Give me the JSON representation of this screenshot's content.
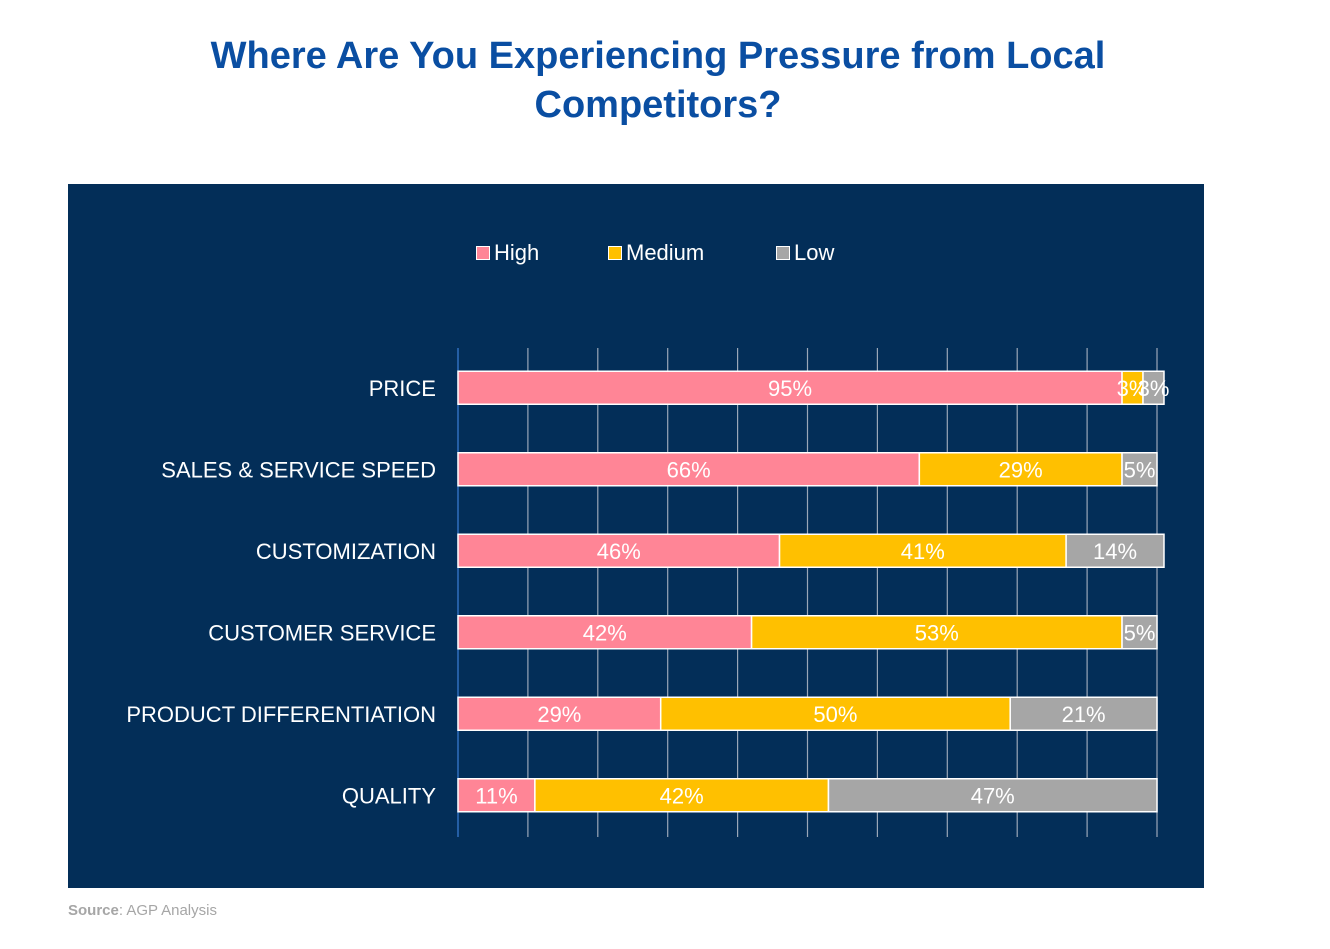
{
  "chart_data": {
    "type": "bar",
    "orientation": "horizontal",
    "stacked": true,
    "title": "Where Are You Experiencing Pressure from Local Competitors?",
    "categories": [
      "PRICE",
      "SALES & SERVICE SPEED",
      "CUSTOMIZATION",
      "CUSTOMER SERVICE",
      "PRODUCT DIFFERENTIATION",
      "QUALITY"
    ],
    "series": [
      {
        "name": "High",
        "color": "#ff8596",
        "values": [
          95,
          66,
          46,
          42,
          29,
          11
        ],
        "labels": [
          "95%",
          "66%",
          "46%",
          "42%",
          "29%",
          "11%"
        ]
      },
      {
        "name": "Medium",
        "color": "#ffc000",
        "values": [
          3,
          29,
          41,
          53,
          50,
          42
        ],
        "labels": [
          "3%",
          "29%",
          "41%",
          "53%",
          "50%",
          "42%"
        ]
      },
      {
        "name": "Low",
        "color": "#a6a6a6",
        "values": [
          3,
          5,
          14,
          5,
          21,
          47
        ],
        "labels": [
          "3%",
          "5%",
          "14%",
          "5%",
          "21%",
          "47%"
        ]
      }
    ],
    "xlim": [
      0,
      100
    ],
    "grid": true,
    "legend": "top-center",
    "background": "#032e58"
  },
  "source": {
    "label": "Source",
    "text": ": AGP Analysis"
  }
}
